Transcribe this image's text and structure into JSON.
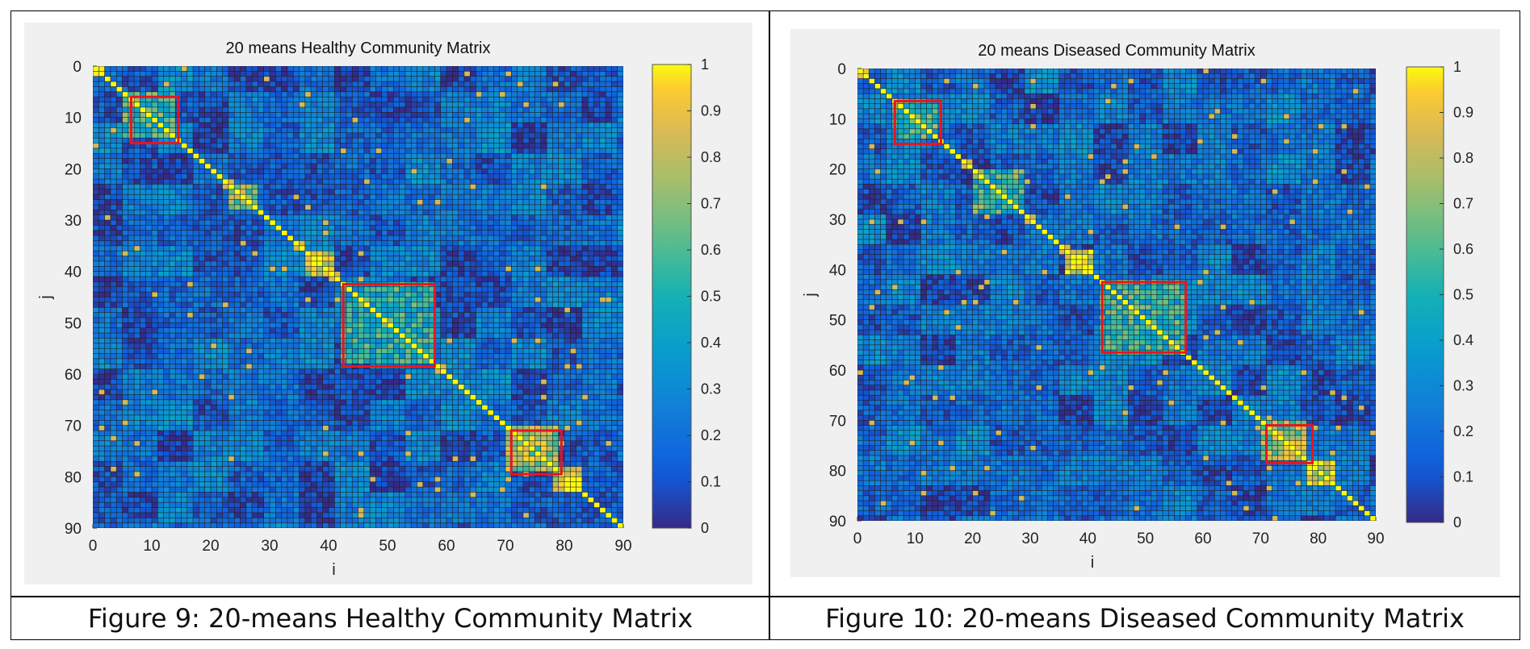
{
  "captions": {
    "left": "Figure 9: 20-means Healthy Community Matrix",
    "right": "Figure 10: 20-means Diseased Community Matrix"
  },
  "chart_data": [
    {
      "type": "heatmap",
      "title": "20 means Healthy Community Matrix",
      "xlabel": "i",
      "ylabel": "j",
      "xlim": [
        0,
        90
      ],
      "ylim": [
        0,
        90
      ],
      "y_direction": "reversed",
      "xticks": [
        0,
        10,
        20,
        30,
        40,
        50,
        60,
        70,
        80,
        90
      ],
      "yticks": [
        0,
        10,
        20,
        30,
        40,
        50,
        60,
        70,
        80,
        90
      ],
      "colorbar": {
        "min": 0,
        "max": 1,
        "ticks": [
          "1",
          "0.9",
          "0.8",
          "0.7",
          "0.6",
          "0.5",
          "0.4",
          "0.3",
          "0.2",
          "0.1",
          "0"
        ],
        "colormap": "parula"
      },
      "matrix_size": 90,
      "diagonal_value": 1,
      "background_value": 0.18,
      "blocks": [
        {
          "from": 1,
          "to": 2,
          "value": 0.9
        },
        {
          "from": 6,
          "to": 14,
          "value": 0.55
        },
        {
          "from": 24,
          "to": 28,
          "value": 0.7
        },
        {
          "from": 37,
          "to": 41,
          "value": 0.85
        },
        {
          "from": 43,
          "to": 58,
          "value": 0.5
        },
        {
          "from": 71,
          "to": 79,
          "value": 0.75
        },
        {
          "from": 79,
          "to": 83,
          "value": 0.85
        }
      ],
      "highlight_boxes": [
        {
          "x0": 6.5,
          "x1": 14.5,
          "y0": 6,
          "y1": 15
        },
        {
          "x0": 42.5,
          "x1": 58,
          "y0": 42.5,
          "y1": 58.5
        },
        {
          "x0": 71,
          "x1": 79.5,
          "y0": 71,
          "y1": 79.5
        }
      ],
      "highlight_color": "#e8141f"
    },
    {
      "type": "heatmap",
      "title": "20 means Diseased Community Matrix",
      "xlabel": "i",
      "ylabel": "j",
      "xlim": [
        0,
        90
      ],
      "ylim": [
        0,
        90
      ],
      "y_direction": "reversed",
      "xticks": [
        0,
        10,
        20,
        30,
        40,
        50,
        60,
        70,
        80,
        90
      ],
      "yticks": [
        0,
        10,
        20,
        30,
        40,
        50,
        60,
        70,
        80,
        90
      ],
      "colorbar": {
        "min": 0,
        "max": 1,
        "ticks": [
          "1",
          "0.9",
          "0.8",
          "0.7",
          "0.6",
          "0.5",
          "0.4",
          "0.3",
          "0.2",
          "0.1",
          "0"
        ],
        "colormap": "parula"
      },
      "matrix_size": 90,
      "diagonal_value": 1,
      "background_value": 0.18,
      "blocks": [
        {
          "from": 1,
          "to": 2,
          "value": 0.9
        },
        {
          "from": 7,
          "to": 14,
          "value": 0.55
        },
        {
          "from": 21,
          "to": 29,
          "value": 0.55
        },
        {
          "from": 37,
          "to": 41,
          "value": 0.85
        },
        {
          "from": 43,
          "to": 57,
          "value": 0.5
        },
        {
          "from": 71,
          "to": 78,
          "value": 0.75
        },
        {
          "from": 79,
          "to": 83,
          "value": 0.85
        }
      ],
      "highlight_boxes": [
        {
          "x0": 6.5,
          "x1": 14.5,
          "y0": 6.5,
          "y1": 15
        },
        {
          "x0": 42.5,
          "x1": 57,
          "y0": 42.5,
          "y1": 56.5
        },
        {
          "x0": 71,
          "x1": 79,
          "y0": 71,
          "y1": 78.5
        }
      ],
      "highlight_color": "#e8141f"
    }
  ]
}
